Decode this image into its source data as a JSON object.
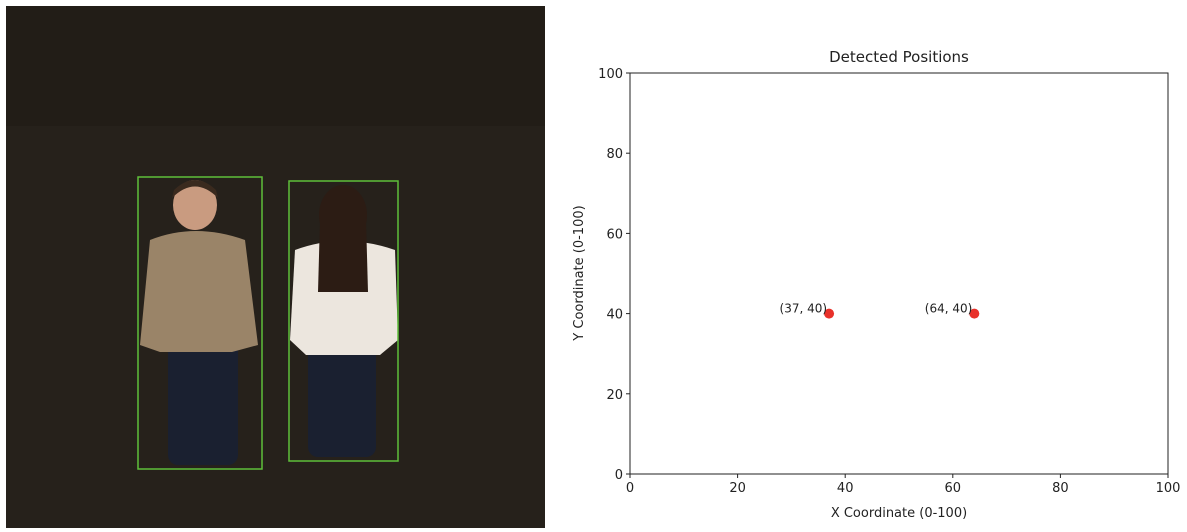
{
  "chart_data": {
    "type": "scatter",
    "title": "Detected Positions",
    "x_label": "X Coordinate (0-100)",
    "y_label": "Y Coordinate (0-100)",
    "series": [
      {
        "x": [
          37,
          64
        ],
        "values": [
          40,
          40
        ],
        "value_labels": [
          "(37, 40)",
          "(64, 40)"
        ],
        "color": "#e8312a"
      }
    ],
    "xlim": [
      0,
      100
    ],
    "ylim": [
      0,
      100
    ],
    "xticks": [
      0,
      20,
      40,
      60,
      80,
      100
    ],
    "yticks": [
      0,
      20,
      40,
      60,
      80,
      100
    ],
    "grid": false
  }
}
